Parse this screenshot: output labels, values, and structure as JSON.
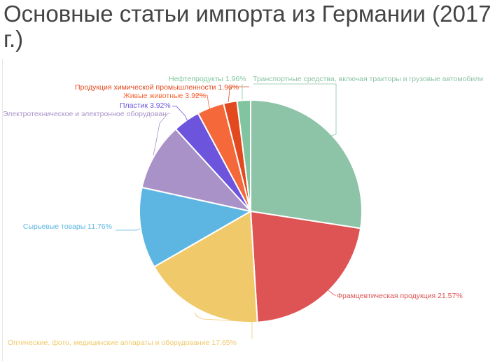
{
  "title": "Основные статьи импорта из Германии (2017 г.)",
  "colors": {
    "transport": "#8dc3a7",
    "pharma": "#de5353",
    "optics": "#f0c96a",
    "raw": "#5db6e2",
    "electro": "#a992c8",
    "plastic": "#6c54dc",
    "animals": "#f4683a",
    "chem": "#e3491f",
    "oil": "#80c59f"
  },
  "chart_data": {
    "type": "pie",
    "title": "Основные статьи импорта из Германии (2017 г.)",
    "slices": [
      {
        "key": "transport",
        "label": "Транспортные средства, включая тракторы и грузовые автомобили",
        "value": 27.46,
        "display": ""
      },
      {
        "key": "pharma",
        "label": "Фрамцевтическая продукция",
        "value": 21.57,
        "display": "21.57%"
      },
      {
        "key": "optics",
        "label": "Оптические, фото, медицинские аппараты и оборудование",
        "value": 17.65,
        "display": "17.65%"
      },
      {
        "key": "raw",
        "label": "Сырьевые товары",
        "value": 11.76,
        "display": "11.76%"
      },
      {
        "key": "electro",
        "label": "Электротехническое и электронное оборудован",
        "value": 9.8,
        "display": ""
      },
      {
        "key": "plastic",
        "label": "Пластик",
        "value": 3.92,
        "display": "3.92%"
      },
      {
        "key": "animals",
        "label": "Живые животные",
        "value": 3.92,
        "display": "3.92%"
      },
      {
        "key": "chem",
        "label": "Продукция химической промышленности",
        "value": 1.96,
        "display": "1.96%"
      },
      {
        "key": "oil",
        "label": "Нефтепродукты",
        "value": 1.96,
        "display": "1.96%"
      }
    ]
  }
}
